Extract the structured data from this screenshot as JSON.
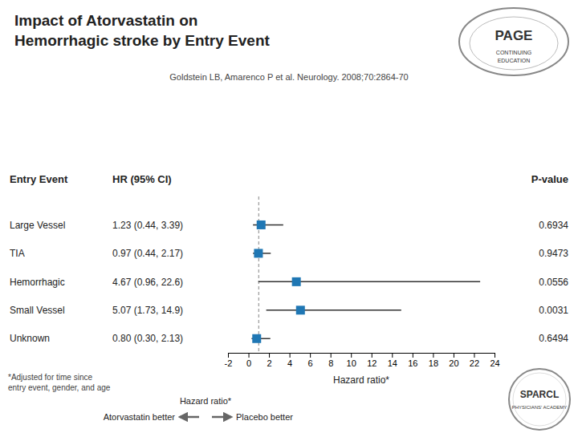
{
  "chart_data": {
    "type": "forest",
    "title": "Impact of Atorvastatin on\nHemorrhagic stroke by Entry Event",
    "subtitle": "Goldstein LB, Amarenco P et al. Neurology. 2008;70:2864-70",
    "columns": [
      "Entry Event",
      "HR (95% CI)",
      "P-value"
    ],
    "categories": [
      "Large Vessel",
      "TIA",
      "Hemorrhagic",
      "Small Vessel",
      "Unknown"
    ],
    "values": [
      1.23,
      0.97,
      4.67,
      5.07,
      0.8
    ],
    "lower": [
      0.44,
      0.44,
      0.96,
      1.73,
      0.3
    ],
    "upper": [
      3.39,
      2.17,
      22.6,
      14.9,
      2.13
    ],
    "ci_labels": [
      "1.23 (0.44, 3.39)",
      "0.97 (0.44, 2.17)",
      "4.67 (0.96, 22.6)",
      "5.07 (1.73, 14.9)",
      "0.80 (0.30, 2.13)"
    ],
    "p_values": [
      0.6934,
      0.9473,
      0.0556,
      0.0031,
      0.6494
    ],
    "reference_line": 1,
    "xlabel": "Hazard ratio*",
    "xlim": [
      -2,
      24
    ],
    "xticks": [
      -2,
      0,
      2,
      4,
      6,
      8,
      10,
      12,
      14,
      16,
      18,
      20,
      22,
      24
    ],
    "direction_labels": [
      "Atorvastatin better",
      "Placebo better"
    ],
    "footnote": "*Adjusted for time since\nentry event, gender, and age",
    "logos": [
      [
        "PAGE",
        "CONTINUING",
        "EDUCATION"
      ],
      [
        "SPARCL",
        "PHYSICIANS' ACADEMY"
      ]
    ]
  }
}
